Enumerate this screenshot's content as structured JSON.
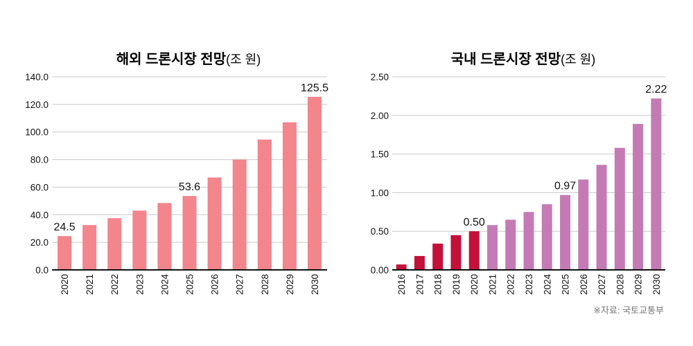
{
  "chart_data": [
    {
      "type": "bar",
      "title": "해외 드론시장 전망",
      "unit": "(조 원)",
      "xlabel": "",
      "ylabel": "",
      "ylim": [
        0,
        140
      ],
      "yticks": [
        "0.0",
        "20.0",
        "40.0",
        "60.0",
        "80.0",
        "100.0",
        "120.0",
        "140.0"
      ],
      "ytick_values": [
        0,
        20,
        40,
        60,
        80,
        100,
        120,
        140
      ],
      "grid": true,
      "categories": [
        "2020",
        "2021",
        "2022",
        "2023",
        "2024",
        "2025",
        "2026",
        "2027",
        "2028",
        "2029",
        "2030"
      ],
      "values": [
        24.5,
        32.5,
        37.5,
        43.0,
        48.5,
        53.6,
        67.0,
        80.0,
        94.5,
        107.0,
        125.5
      ],
      "colors": [
        "#f3858c",
        "#f3858c",
        "#f3858c",
        "#f3858c",
        "#f3858c",
        "#f3858c",
        "#f3858c",
        "#f3858c",
        "#f3858c",
        "#f3858c",
        "#f3858c"
      ],
      "data_labels": [
        {
          "category": "2020",
          "text": "24.5"
        },
        {
          "category": "2025",
          "text": "53.6"
        },
        {
          "category": "2030",
          "text": "125.5"
        }
      ]
    },
    {
      "type": "bar",
      "title": "국내 드론시장 전망",
      "unit": "(조 원)",
      "xlabel": "",
      "ylabel": "",
      "ylim": [
        0,
        2.5
      ],
      "yticks": [
        "0.00",
        "0.50",
        "1.00",
        "1.50",
        "2.00",
        "2.50"
      ],
      "ytick_values": [
        0,
        0.5,
        1.0,
        1.5,
        2.0,
        2.5
      ],
      "grid": true,
      "categories": [
        "2016",
        "2017",
        "2018",
        "2019",
        "2020",
        "2021",
        "2022",
        "2023",
        "2024",
        "2025",
        "2026",
        "2027",
        "2028",
        "2029",
        "2030"
      ],
      "values": [
        0.07,
        0.18,
        0.34,
        0.45,
        0.5,
        0.58,
        0.65,
        0.75,
        0.85,
        0.97,
        1.17,
        1.36,
        1.58,
        1.89,
        2.22
      ],
      "colors": [
        "#c4113a",
        "#c4113a",
        "#c4113a",
        "#c4113a",
        "#c4113a",
        "#c47bb5",
        "#c47bb5",
        "#c47bb5",
        "#c47bb5",
        "#c47bb5",
        "#c47bb5",
        "#c47bb5",
        "#c47bb5",
        "#c47bb5",
        "#c47bb5"
      ],
      "data_labels": [
        {
          "category": "2020",
          "text": "0.50"
        },
        {
          "category": "2025",
          "text": "0.97"
        },
        {
          "category": "2030",
          "text": "2.22"
        }
      ]
    }
  ],
  "source": "※자료: 국토교통부"
}
